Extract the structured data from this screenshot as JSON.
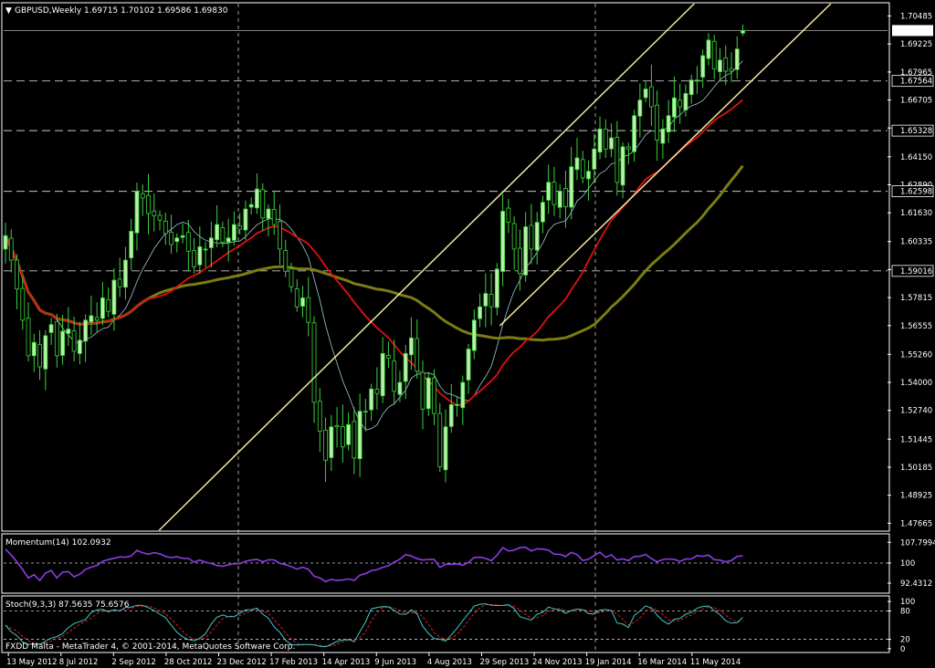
{
  "colors": {
    "background": "#000000",
    "bull_candle": "#b8f0a8",
    "bear_candle": "#000000",
    "wick": "#3cd23c",
    "ma_red": "#e01010",
    "ma_olive": "#7c7c10",
    "ma_thin": "#a0c8d8",
    "channel": "#f0e69c",
    "momentum": "#8e3ce6",
    "stoch_main": "#40c8d0",
    "stoch_signal": "#e02020",
    "grid": "#c8c8c8",
    "axis": "#ffffff"
  },
  "main_panel": {
    "title": "GBPUSD,Weekly",
    "ohlc": "1.69715 1.70102 1.69586 1.69830",
    "menu_glyph": "▼",
    "current_price_label": "1.69830"
  },
  "momentum_panel": {
    "label": "Momentum(14) 102.0932",
    "ticks": [
      "107.7994",
      "100",
      "92.4312"
    ]
  },
  "stoch_panel": {
    "label": "Stoch(9,3,3) 87.5635 75.6576",
    "ticks": [
      "100",
      "80",
      "20",
      "0"
    ]
  },
  "footer": {
    "copyright": "FXDD Malta - MetaTrader 4, © 2001-2014, MetaQuotes Software Corp."
  },
  "chart_data": {
    "type": "candlestick",
    "symbol": "GBPUSD",
    "timeframe": "Weekly",
    "last_ohlc": {
      "open": 1.69715,
      "high": 1.70102,
      "low": 1.69586,
      "close": 1.6983
    },
    "y_ticks": [
      "1.70485",
      "1.69225",
      "1.67965",
      "1.66705",
      "1.65445",
      "1.64150",
      "1.62890",
      "1.61630",
      "1.60335",
      "1.59075",
      "1.57815",
      "1.56555",
      "1.55260",
      "1.54000",
      "1.52740",
      "1.51445",
      "1.50185",
      "1.48925",
      "1.47665"
    ],
    "y_range": [
      1.4735,
      1.7104
    ],
    "highlight_levels": [
      "1.67564",
      "1.65328",
      "1.62598",
      "1.59016"
    ],
    "x_labels": [
      "13 May 2012",
      "8 Jul 2012",
      "2 Sep 2012",
      "28 Oct 2012",
      "23 Dec 2012",
      "17 Feb 2013",
      "14 Apr 2013",
      "9 Jun 2013",
      "4 Aug 2013",
      "29 Sep 2013",
      "24 Nov 2013",
      "19 Jan 2014",
      "16 Mar 2014",
      "11 May 2014"
    ],
    "closes": [
      1.606,
      1.595,
      1.582,
      1.568,
      1.552,
      1.558,
      1.547,
      1.561,
      1.566,
      1.552,
      1.563,
      1.564,
      1.554,
      1.559,
      1.568,
      1.57,
      1.568,
      1.578,
      1.572,
      1.586,
      1.583,
      1.595,
      1.608,
      1.626,
      1.623,
      1.616,
      1.615,
      1.613,
      1.607,
      1.602,
      1.605,
      1.606,
      1.599,
      1.592,
      1.601,
      1.6,
      1.605,
      1.611,
      1.603,
      1.605,
      1.611,
      1.609,
      1.618,
      1.62,
      1.627,
      1.614,
      1.618,
      1.611,
      1.6,
      1.59,
      1.583,
      1.574,
      1.578,
      1.567,
      1.531,
      1.518,
      1.505,
      1.52,
      1.52,
      1.511,
      1.521,
      1.506,
      1.527,
      1.527,
      1.537,
      1.535,
      1.553,
      1.551,
      1.536,
      1.54,
      1.553,
      1.56,
      1.545,
      1.528,
      1.542,
      1.526,
      1.502,
      1.52,
      1.53,
      1.53,
      1.54,
      1.555,
      1.568,
      1.574,
      1.58,
      1.574,
      1.591,
      1.617,
      1.612,
      1.6,
      1.589,
      1.61,
      1.6,
      1.612,
      1.621,
      1.63,
      1.62,
      1.626,
      1.619,
      1.637,
      1.641,
      1.632,
      1.635,
      1.645,
      1.654,
      1.645,
      1.65,
      1.63,
      1.646,
      1.645,
      1.66,
      1.667,
      1.672,
      1.664,
      1.649,
      1.654,
      1.66,
      1.668,
      1.664,
      1.67,
      1.676,
      1.676,
      1.687,
      1.694,
      1.681,
      1.685,
      1.68,
      1.68,
      1.69,
      1.698
    ],
    "momentum_range": [
      89.0,
      110.3
    ],
    "stoch_range": [
      -6,
      108
    ]
  }
}
